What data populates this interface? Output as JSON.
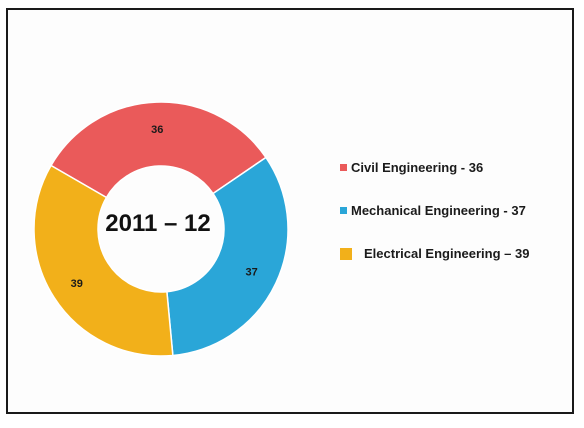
{
  "chart_data": {
    "type": "pie",
    "title": "2011 – 12",
    "categories": [
      "Civil Engineering",
      "Mechanical Engineering",
      "Electrical Engineering"
    ],
    "values": [
      36,
      37,
      39
    ],
    "data_labels": [
      "36",
      "37",
      "39"
    ],
    "colors": [
      "#ea5a5a",
      "#2aa6d8",
      "#f2b01a"
    ],
    "legend_labels": [
      "Civil Engineering - 36",
      "Mechanical Engineering - 37",
      "Electrical Engineering – 39"
    ],
    "legend_placement": "right"
  }
}
